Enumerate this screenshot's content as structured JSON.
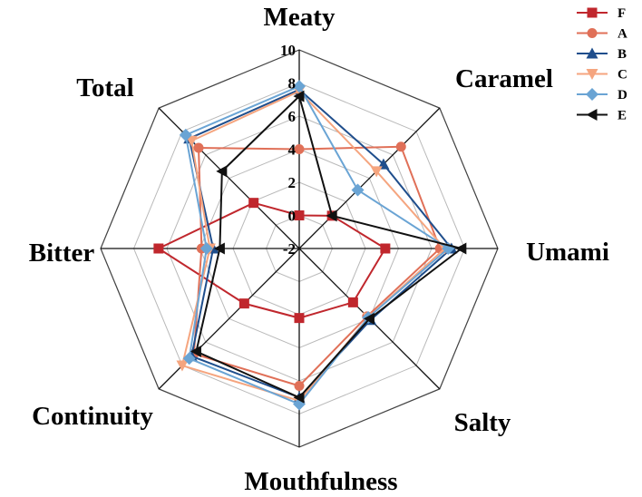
{
  "chart_data": {
    "type": "radar",
    "axes": [
      "Meaty",
      "Caramel",
      "Umami",
      "Salty",
      "Mouthfulness",
      "Continuity",
      "Bitter",
      "Total"
    ],
    "rlim": [
      -2,
      10
    ],
    "ticks": [
      "-2",
      "0",
      "2",
      "4",
      "6",
      "8",
      "10"
    ],
    "grid": true,
    "legend_position": "top-right",
    "series": [
      {
        "name": "F",
        "color": "#c0272d",
        "marker": "square",
        "values": [
          0,
          0.8,
          3.2,
          2.6,
          2.2,
          2.7,
          6.5,
          1.9
        ]
      },
      {
        "name": "A",
        "color": "#e07058",
        "marker": "circle",
        "values": [
          4,
          6.7,
          6.5,
          3.8,
          6.3,
          7.0,
          3.9,
          6.6
        ]
      },
      {
        "name": "B",
        "color": "#1f4e8c",
        "marker": "triangle-up",
        "values": [
          7.6,
          5.2,
          7.2,
          4.1,
          7.0,
          7.2,
          3.2,
          7.4
        ]
      },
      {
        "name": "C",
        "color": "#f5a57f",
        "marker": "triangle-down",
        "values": [
          7.5,
          4.6,
          6.8,
          3.9,
          7.2,
          8.0,
          3.4,
          7.2
        ]
      },
      {
        "name": "D",
        "color": "#6aa4d4",
        "marker": "diamond",
        "values": [
          7.8,
          3.0,
          7.0,
          3.9,
          7.4,
          7.4,
          3.6,
          7.7
        ]
      },
      {
        "name": "E",
        "color": "#111111",
        "marker": "triangle-left",
        "values": [
          7.2,
          0.8,
          7.8,
          4.0,
          7.0,
          6.8,
          2.8,
          4.6
        ]
      }
    ]
  }
}
